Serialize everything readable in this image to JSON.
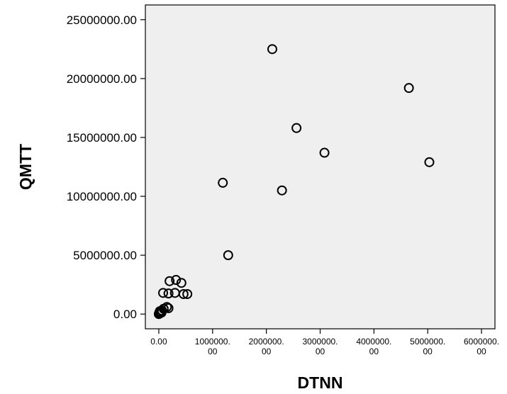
{
  "chart_data": {
    "type": "scatter",
    "title": "",
    "xlabel": "DTNN",
    "ylabel": "QMTT",
    "xlim": [
      -250000,
      6250000
    ],
    "ylim": [
      -1250000,
      26250000
    ],
    "grid": false,
    "x_ticks": [
      {
        "value": 0,
        "label": [
          "0.00"
        ]
      },
      {
        "value": 1000000,
        "label": [
          "1000000.",
          "00"
        ]
      },
      {
        "value": 2000000,
        "label": [
          "2000000.",
          "00"
        ]
      },
      {
        "value": 3000000,
        "label": [
          "3000000.",
          "00"
        ]
      },
      {
        "value": 4000000,
        "label": [
          "4000000.",
          "00"
        ]
      },
      {
        "value": 5000000,
        "label": [
          "5000000.",
          "00"
        ]
      },
      {
        "value": 6000000,
        "label": [
          "6000000.",
          "00"
        ]
      }
    ],
    "y_ticks": [
      {
        "value": 0,
        "label": "0.00"
      },
      {
        "value": 5000000,
        "label": "5000000.00"
      },
      {
        "value": 10000000,
        "label": "10000000.00"
      },
      {
        "value": 15000000,
        "label": "15000000.00"
      },
      {
        "value": 20000000,
        "label": "20000000.00"
      },
      {
        "value": 25000000,
        "label": "25000000.00"
      }
    ],
    "points": [
      {
        "x": 2110000,
        "y": 22500000
      },
      {
        "x": 4650000,
        "y": 19200000
      },
      {
        "x": 2560000,
        "y": 15800000
      },
      {
        "x": 3080000,
        "y": 13700000
      },
      {
        "x": 5030000,
        "y": 12900000
      },
      {
        "x": 1190000,
        "y": 11150000
      },
      {
        "x": 2290000,
        "y": 10500000
      },
      {
        "x": 1290000,
        "y": 5000000
      },
      {
        "x": 200000,
        "y": 2800000
      },
      {
        "x": 320000,
        "y": 2900000
      },
      {
        "x": 420000,
        "y": 2650000
      },
      {
        "x": 80000,
        "y": 1800000
      },
      {
        "x": 180000,
        "y": 1750000
      },
      {
        "x": 300000,
        "y": 1800000
      },
      {
        "x": 460000,
        "y": 1700000
      },
      {
        "x": 530000,
        "y": 1700000
      },
      {
        "x": 150000,
        "y": 600000
      },
      {
        "x": 180000,
        "y": 500000
      },
      {
        "x": 90000,
        "y": 450000
      },
      {
        "x": 60000,
        "y": 300000
      },
      {
        "x": 30000,
        "y": 200000
      },
      {
        "x": 15000,
        "y": 150000
      },
      {
        "x": 8000,
        "y": 100000
      },
      {
        "x": 3000,
        "y": 50000
      },
      {
        "x": 20000,
        "y": 250000
      },
      {
        "x": 50000,
        "y": 120000
      },
      {
        "x": 10000,
        "y": 30000
      },
      {
        "x": 0,
        "y": 0
      }
    ],
    "colors": {
      "plot_background": "#efefef",
      "frame": "#000000",
      "marker_stroke": "#000000",
      "marker_fill": "none"
    }
  }
}
